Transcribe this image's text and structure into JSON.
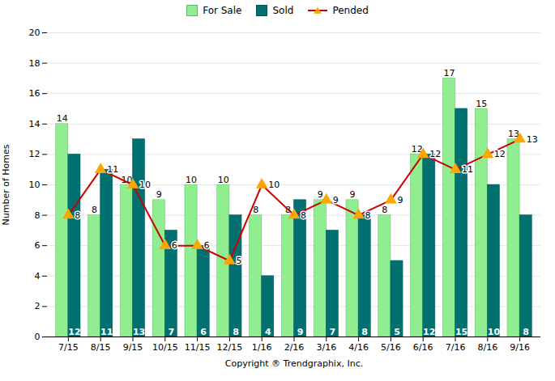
{
  "chart_data": {
    "type": "bar",
    "categories": [
      "7/15",
      "8/15",
      "9/15",
      "10/15",
      "11/15",
      "12/15",
      "1/16",
      "2/16",
      "3/16",
      "4/16",
      "5/16",
      "6/16",
      "7/16",
      "8/16",
      "9/16"
    ],
    "series": [
      {
        "name": "For Sale",
        "type": "bar",
        "color": "#90EE90",
        "values": [
          14,
          8,
          10,
          9,
          10,
          10,
          8,
          8,
          9,
          9,
          8,
          12,
          17,
          15,
          13
        ]
      },
      {
        "name": "Sold",
        "type": "bar",
        "color": "#007070",
        "values": [
          12,
          11,
          13,
          7,
          6,
          8,
          4,
          9,
          7,
          8,
          5,
          12,
          15,
          10,
          8
        ]
      },
      {
        "name": "Pended",
        "type": "line",
        "color": "#CC0000",
        "marker": "triangle",
        "values": [
          8,
          11,
          10,
          6,
          6,
          5,
          10,
          8,
          9,
          8,
          9,
          12,
          11,
          12,
          13
        ]
      }
    ],
    "xlabel": "Copyright ® Trendgraphix, Inc.",
    "ylabel": "Number of Homes",
    "ylim": [
      0,
      20
    ],
    "yticks": [
      0,
      2,
      4,
      6,
      8,
      10,
      12,
      14,
      16,
      18,
      20
    ],
    "grid": true,
    "legend": "top",
    "data_labels": true
  }
}
